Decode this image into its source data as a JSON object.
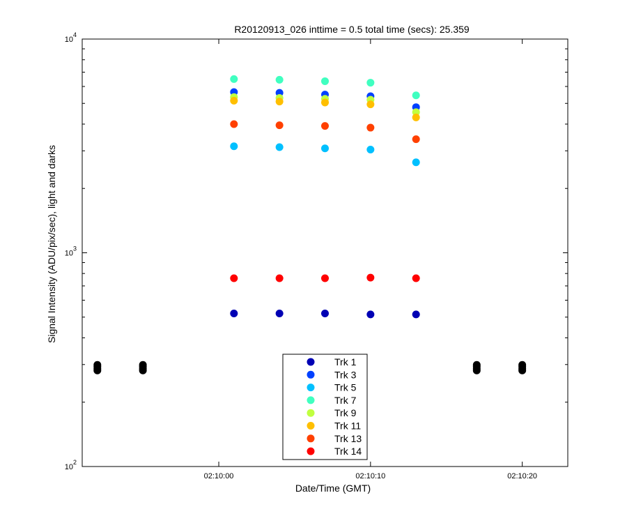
{
  "chart_data": {
    "type": "scatter",
    "title": "R20120913_026 inttime = 0.5 total time (secs): 25.359",
    "xlabel": "Date/Time (GMT)",
    "ylabel": "Signal Intensity (ADU/pix/sec), light and darks",
    "y_scale": "log",
    "ylim": [
      100,
      10000
    ],
    "y_ticks": [
      {
        "value": 100,
        "base": "10",
        "exp": "2"
      },
      {
        "value": 1000,
        "base": "10",
        "exp": "3"
      },
      {
        "value": 10000,
        "base": "10",
        "exp": "4"
      }
    ],
    "xlim": [
      "02:09:51",
      "02:10:23"
    ],
    "x_ticks": [
      "02:10:00",
      "02:10:10",
      "02:10:20"
    ],
    "grid": false,
    "legend_position": "bottom-center",
    "x": [
      "02:10:01",
      "02:10:04",
      "02:10:07",
      "02:10:10",
      "02:10:13"
    ],
    "series": [
      {
        "name": "Trk 1",
        "color": "#0000b4",
        "values": [
          520,
          520,
          520,
          515,
          515
        ]
      },
      {
        "name": "Trk 3",
        "color": "#0040ff",
        "values": [
          5650,
          5600,
          5500,
          5400,
          4800
        ]
      },
      {
        "name": "Trk 5",
        "color": "#00c0ff",
        "values": [
          3150,
          3120,
          3080,
          3040,
          2650
        ]
      },
      {
        "name": "Trk 7",
        "color": "#40ffc0",
        "values": [
          6500,
          6450,
          6350,
          6250,
          5450
        ]
      },
      {
        "name": "Trk 9",
        "color": "#c0ff40",
        "values": [
          5350,
          5300,
          5250,
          5200,
          4550
        ]
      },
      {
        "name": "Trk 11",
        "color": "#ffbf00",
        "values": [
          5150,
          5100,
          5050,
          4950,
          4300
        ]
      },
      {
        "name": "Trk 13",
        "color": "#ff4000",
        "values": [
          4000,
          3950,
          3920,
          3850,
          3400
        ]
      },
      {
        "name": "Trk 14",
        "color": "#ff0000",
        "values": [
          760,
          760,
          760,
          765,
          760
        ]
      }
    ],
    "dark_frames": {
      "color": "#000000",
      "x": [
        "02:09:52",
        "02:09:55",
        "02:10:17",
        "02:10:20"
      ],
      "values": [
        290,
        290,
        290,
        290
      ]
    }
  }
}
